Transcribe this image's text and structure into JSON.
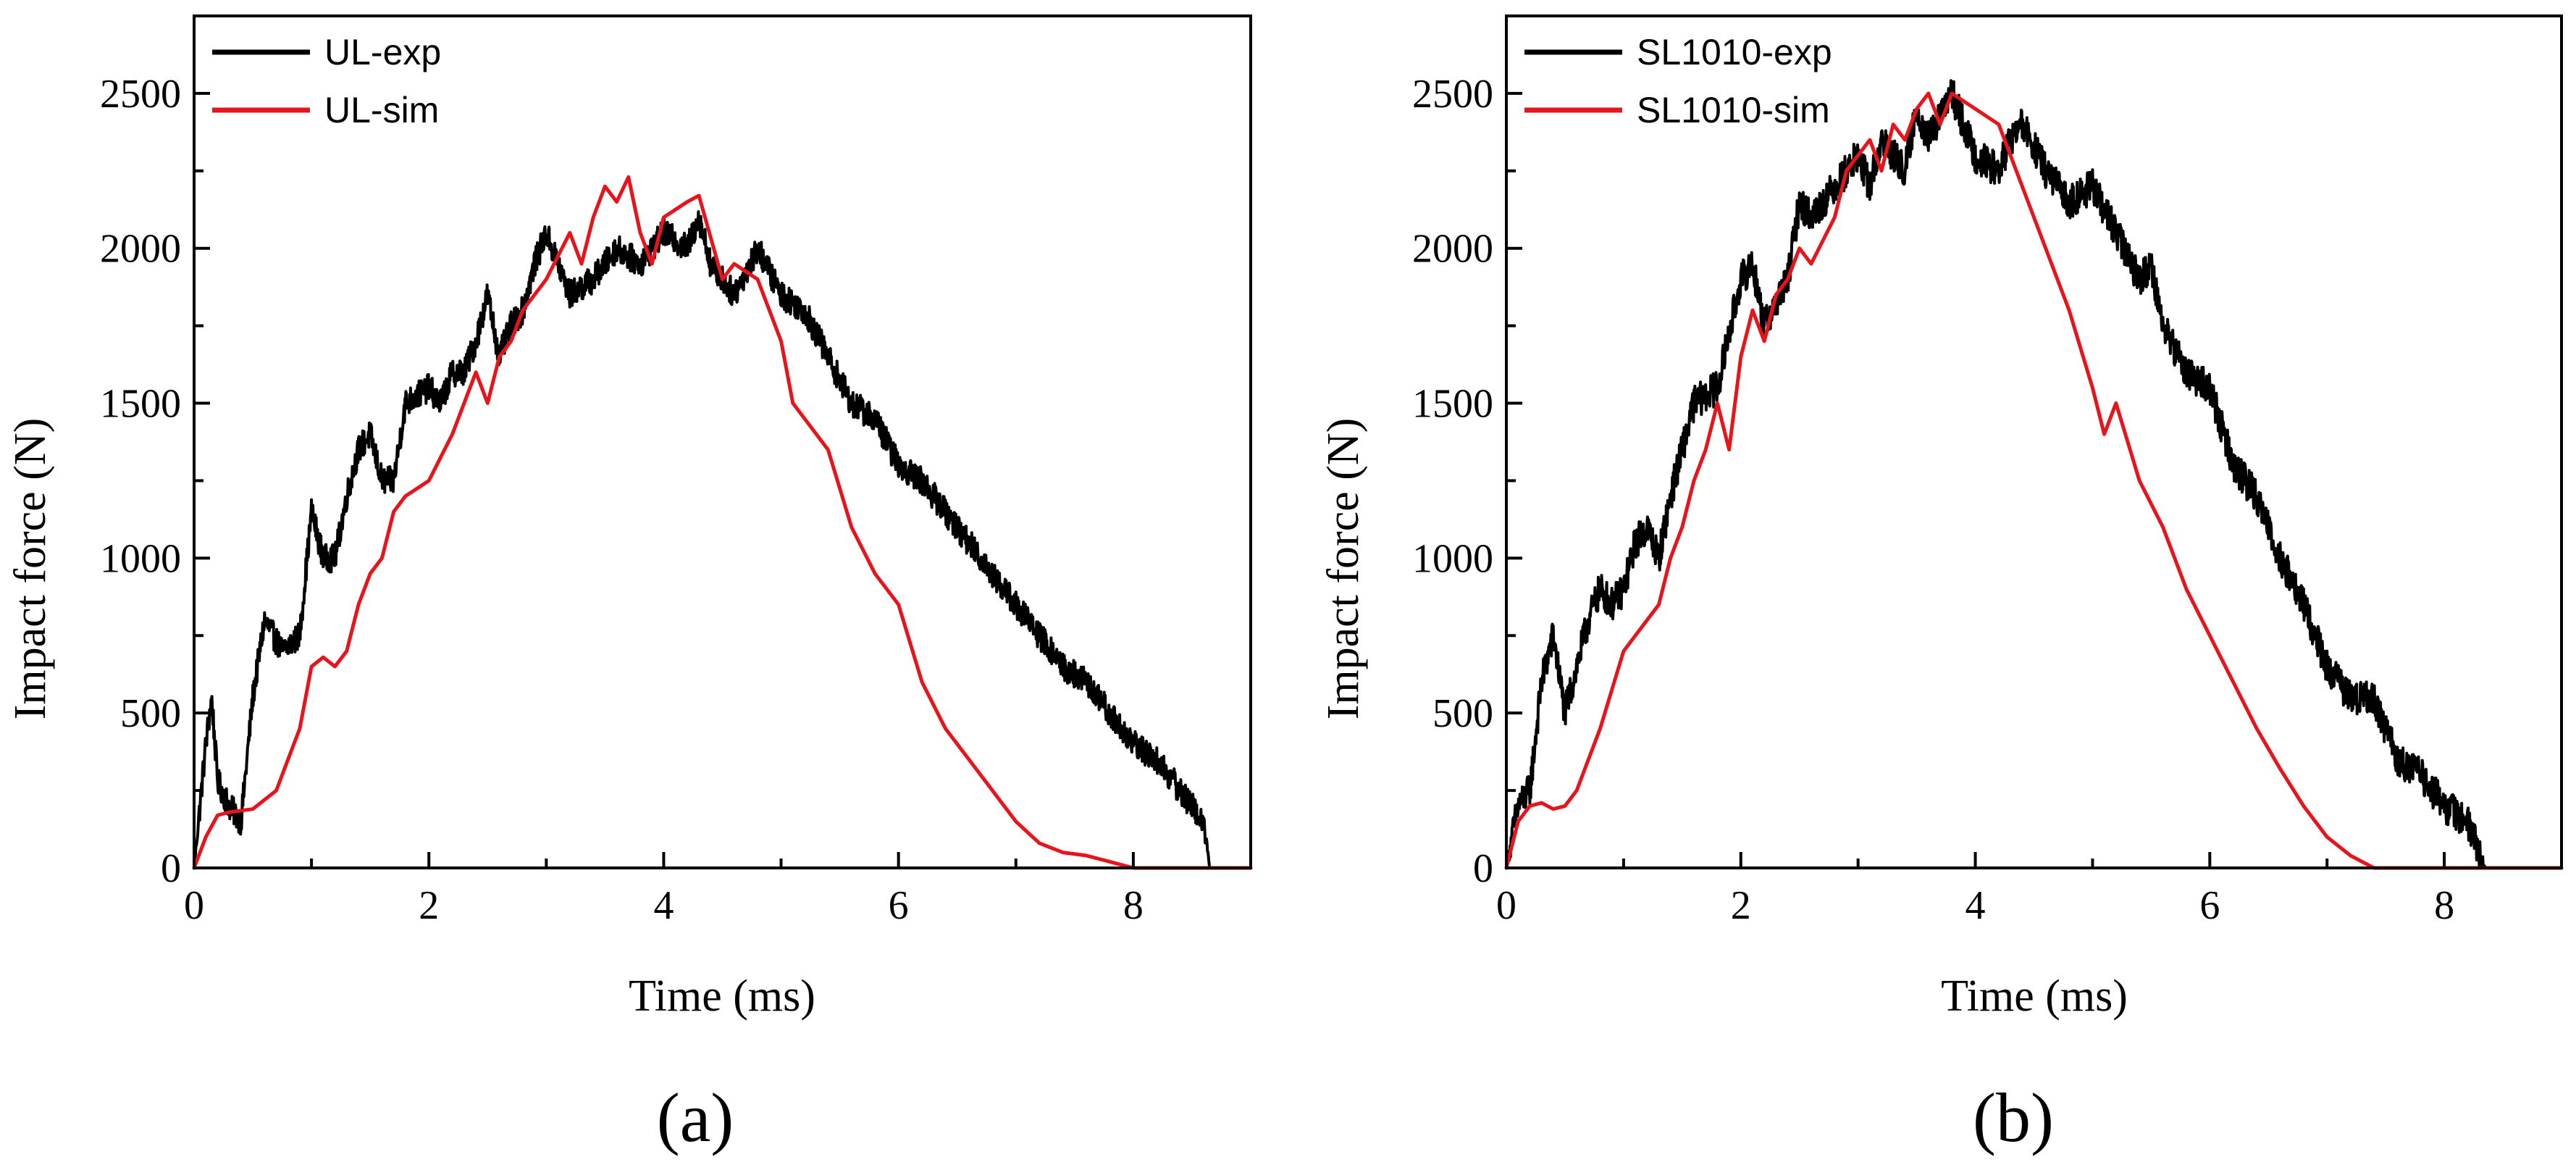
{
  "chart_data": [
    {
      "type": "line",
      "panel_label": "(a)",
      "xlabel": "Time (ms)",
      "ylabel": "Impact force (N)",
      "xlim": [
        0,
        9
      ],
      "ylim": [
        0,
        2750
      ],
      "xticks": [
        0,
        2,
        4,
        6,
        8
      ],
      "yticks": [
        0,
        500,
        1000,
        1500,
        2000,
        2500
      ],
      "legend_position": "top-left",
      "series": [
        {
          "name": "UL-exp",
          "color": "#000000",
          "noise": 45,
          "x": [
            0,
            0.1,
            0.15,
            0.2,
            0.3,
            0.4,
            0.5,
            0.6,
            0.75,
            0.9,
            1.0,
            1.1,
            1.2,
            1.3,
            1.4,
            1.5,
            1.6,
            1.7,
            1.8,
            2.0,
            2.1,
            2.2,
            2.3,
            2.4,
            2.5,
            2.6,
            2.7,
            2.8,
            2.9,
            3.0,
            3.2,
            3.4,
            3.6,
            3.8,
            4.0,
            4.2,
            4.3,
            4.4,
            4.6,
            4.8,
            5.0,
            5.2,
            5.4,
            5.6,
            5.8,
            6.0,
            6.2,
            6.4,
            6.6,
            6.8,
            7.0,
            7.2,
            7.4,
            7.6,
            7.8,
            8.0,
            8.2,
            8.4,
            8.6,
            8.65
          ],
          "y": [
            0,
            400,
            550,
            280,
            200,
            150,
            550,
            800,
            700,
            750,
            1150,
            1000,
            1000,
            1200,
            1350,
            1400,
            1250,
            1250,
            1500,
            1550,
            1500,
            1600,
            1600,
            1700,
            1850,
            1650,
            1750,
            1800,
            1950,
            2050,
            1850,
            1900,
            2000,
            1950,
            2050,
            2000,
            2100,
            1950,
            1850,
            2000,
            1850,
            1800,
            1650,
            1500,
            1450,
            1300,
            1250,
            1150,
            1050,
            950,
            850,
            750,
            650,
            600,
            500,
            400,
            350,
            250,
            150,
            0
          ]
        },
        {
          "name": "UL-sim",
          "color": "#e8141b",
          "noise": 0,
          "x": [
            0,
            0.1,
            0.2,
            0.3,
            0.5,
            0.7,
            0.8,
            0.9,
            1.0,
            1.1,
            1.2,
            1.3,
            1.4,
            1.5,
            1.6,
            1.7,
            1.8,
            2.0,
            2.2,
            2.4,
            2.5,
            2.6,
            2.7,
            2.8,
            3.0,
            3.2,
            3.3,
            3.4,
            3.5,
            3.6,
            3.7,
            3.8,
            3.9,
            4.0,
            4.2,
            4.3,
            4.5,
            4.6,
            4.8,
            5.0,
            5.1,
            5.2,
            5.4,
            5.6,
            5.8,
            6.0,
            6.2,
            6.4,
            6.6,
            6.8,
            7.0,
            7.2,
            7.4,
            7.6,
            7.8,
            8.0,
            9.0
          ],
          "y": [
            0,
            100,
            170,
            180,
            190,
            250,
            350,
            450,
            650,
            680,
            650,
            700,
            850,
            950,
            1000,
            1150,
            1200,
            1250,
            1400,
            1600,
            1500,
            1650,
            1700,
            1800,
            1900,
            2050,
            1950,
            2100,
            2200,
            2150,
            2230,
            2050,
            1950,
            2100,
            2150,
            2170,
            1900,
            1950,
            1900,
            1700,
            1500,
            1450,
            1350,
            1100,
            950,
            850,
            600,
            450,
            350,
            250,
            150,
            80,
            50,
            40,
            20,
            0,
            0
          ]
        }
      ]
    },
    {
      "type": "line",
      "panel_label": "(b)",
      "xlabel": "Time (ms)",
      "ylabel": "Impact force (N)",
      "xlim": [
        0,
        9
      ],
      "ylim": [
        0,
        2750
      ],
      "xticks": [
        0,
        2,
        4,
        6,
        8
      ],
      "yticks": [
        0,
        500,
        1000,
        1500,
        2000,
        2500
      ],
      "legend_position": "top-left",
      "series": [
        {
          "name": "SL1010-exp",
          "color": "#000000",
          "noise": 55,
          "x": [
            0,
            0.1,
            0.2,
            0.3,
            0.4,
            0.5,
            0.6,
            0.7,
            0.8,
            0.9,
            1.0,
            1.1,
            1.2,
            1.3,
            1.4,
            1.6,
            1.8,
            2.0,
            2.1,
            2.2,
            2.4,
            2.5,
            2.6,
            2.8,
            3.0,
            3.1,
            3.2,
            3.4,
            3.5,
            3.6,
            3.8,
            4.0,
            4.2,
            4.3,
            4.4,
            4.6,
            4.8,
            5.0,
            5.2,
            5.4,
            5.5,
            5.6,
            5.8,
            6.0,
            6.2,
            6.4,
            6.6,
            6.8,
            7.0,
            7.2,
            7.4,
            7.6,
            7.8,
            8.0,
            8.2,
            8.35
          ],
          "y": [
            0,
            200,
            250,
            600,
            750,
            500,
            650,
            800,
            900,
            850,
            900,
            1050,
            1100,
            1000,
            1200,
            1500,
            1550,
            1900,
            1950,
            1750,
            1900,
            2150,
            2100,
            2200,
            2300,
            2200,
            2350,
            2250,
            2450,
            2350,
            2500,
            2300,
            2250,
            2350,
            2400,
            2250,
            2150,
            2200,
            2050,
            1900,
            1950,
            1750,
            1600,
            1550,
            1300,
            1200,
            1000,
            850,
            650,
            550,
            550,
            350,
            300,
            200,
            150,
            0
          ]
        },
        {
          "name": "SL1010-sim",
          "color": "#e8141b",
          "noise": 0,
          "x": [
            0,
            0.1,
            0.2,
            0.3,
            0.4,
            0.5,
            0.6,
            0.8,
            1.0,
            1.2,
            1.3,
            1.4,
            1.5,
            1.6,
            1.7,
            1.8,
            1.9,
            2.0,
            2.1,
            2.2,
            2.3,
            2.4,
            2.5,
            2.6,
            2.8,
            2.9,
            3.0,
            3.1,
            3.2,
            3.3,
            3.4,
            3.5,
            3.6,
            3.7,
            3.8,
            4.0,
            4.2,
            4.4,
            4.6,
            4.8,
            5.0,
            5.1,
            5.2,
            5.4,
            5.6,
            5.8,
            6.0,
            6.2,
            6.4,
            6.6,
            6.8,
            7.0,
            7.2,
            7.4,
            9.0
          ],
          "y": [
            0,
            150,
            200,
            210,
            190,
            200,
            250,
            450,
            700,
            800,
            850,
            1000,
            1100,
            1250,
            1350,
            1500,
            1350,
            1650,
            1800,
            1700,
            1850,
            1900,
            2000,
            1950,
            2100,
            2250,
            2300,
            2350,
            2250,
            2400,
            2350,
            2450,
            2500,
            2400,
            2500,
            2450,
            2400,
            2200,
            2000,
            1800,
            1550,
            1400,
            1500,
            1250,
            1100,
            900,
            750,
            600,
            450,
            320,
            200,
            100,
            40,
            0,
            0
          ]
        }
      ]
    }
  ]
}
